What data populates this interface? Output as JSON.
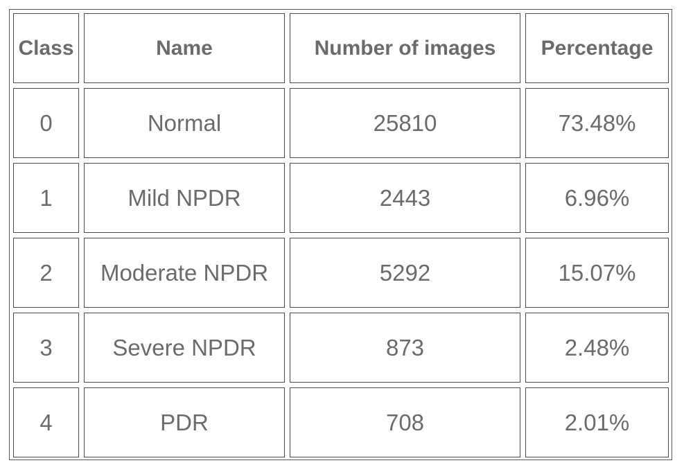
{
  "table": {
    "headers": [
      "Class",
      "Name",
      "Number of images",
      "Percentage"
    ],
    "rows": [
      [
        "0",
        "Normal",
        "25810",
        "73.48%"
      ],
      [
        "1",
        "Mild NPDR",
        "2443",
        "6.96%"
      ],
      [
        "2",
        "Moderate NPDR",
        "5292",
        "15.07%"
      ],
      [
        "3",
        "Severe NPDR",
        "873",
        "2.48%"
      ],
      [
        "4",
        "PDR",
        "708",
        "2.01%"
      ]
    ]
  },
  "colors": {
    "text": "#6b6b6b",
    "border": "#4a4a4a",
    "background": "#ffffff"
  }
}
